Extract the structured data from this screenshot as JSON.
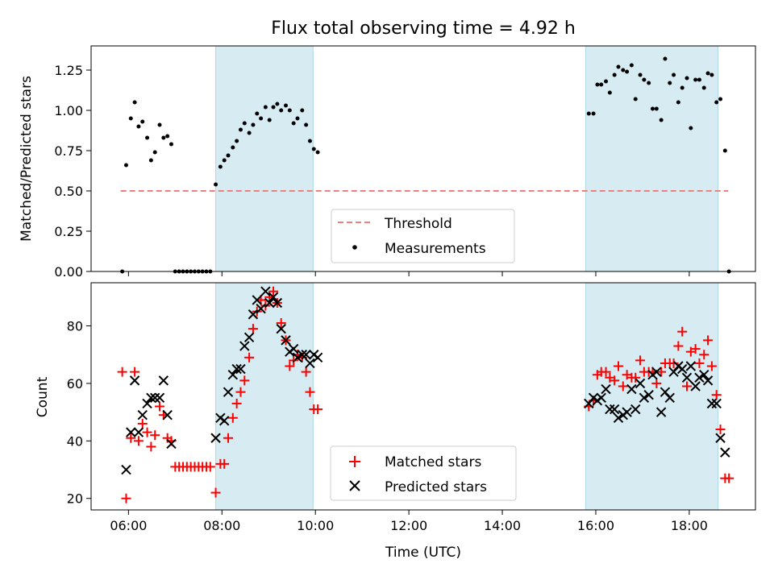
{
  "title": "Flux total observing time = 4.92 h",
  "xlabel": "Time (UTC)",
  "x_tick_labels": [
    "06:00",
    "08:00",
    "10:00",
    "12:00",
    "14:00",
    "16:00",
    "18:00"
  ],
  "chart_data": [
    {
      "type": "scatter",
      "ylabel": "Matched/Predicted stars",
      "ylim": [
        0,
        1.4
      ],
      "yticks": [
        "0.00",
        "0.25",
        "0.50",
        "0.75",
        "1.00",
        "1.25"
      ],
      "shaded_intervals": [
        [
          "07:52",
          "09:57"
        ],
        [
          "15:47",
          "18:37"
        ]
      ],
      "threshold": {
        "name": "Threshold",
        "value": 0.5,
        "x_range": [
          "05:50",
          "18:50"
        ],
        "color": "#f08080",
        "style": "dashed"
      },
      "legend": {
        "placement": "lower-center",
        "entries": [
          "Threshold",
          "Measurements"
        ]
      },
      "series": [
        {
          "name": "Measurements",
          "marker": "dot",
          "color": "#000000",
          "points": [
            [
              "05:52",
              0
            ],
            [
              "05:57",
              0.66
            ],
            [
              "06:03",
              0.95
            ],
            [
              "06:08",
              1.05
            ],
            [
              "06:13",
              0.9
            ],
            [
              "06:18",
              0.93
            ],
            [
              "06:24",
              0.83
            ],
            [
              "06:29",
              0.69
            ],
            [
              "06:34",
              0.74
            ],
            [
              "06:40",
              0.91
            ],
            [
              "06:45",
              0.83
            ],
            [
              "06:50",
              0.84
            ],
            [
              "06:55",
              0.79
            ],
            [
              "07:00",
              0
            ],
            [
              "07:05",
              0
            ],
            [
              "07:10",
              0
            ],
            [
              "07:15",
              0
            ],
            [
              "07:20",
              0
            ],
            [
              "07:25",
              0
            ],
            [
              "07:30",
              0
            ],
            [
              "07:35",
              0
            ],
            [
              "07:40",
              0
            ],
            [
              "07:45",
              0
            ],
            [
              "07:52",
              0.54
            ],
            [
              "07:58",
              0.65
            ],
            [
              "08:03",
              0.69
            ],
            [
              "08:08",
              0.72
            ],
            [
              "08:14",
              0.77
            ],
            [
              "08:19",
              0.81
            ],
            [
              "08:24",
              0.88
            ],
            [
              "08:29",
              0.92
            ],
            [
              "08:35",
              0.86
            ],
            [
              "08:40",
              0.91
            ],
            [
              "08:45",
              0.98
            ],
            [
              "08:50",
              0.95
            ],
            [
              "08:56",
              1.02
            ],
            [
              "09:01",
              0.94
            ],
            [
              "09:06",
              1.02
            ],
            [
              "09:11",
              1.04
            ],
            [
              "09:16",
              1.0
            ],
            [
              "09:22",
              1.03
            ],
            [
              "09:27",
              1.0
            ],
            [
              "09:32",
              0.92
            ],
            [
              "09:37",
              0.95
            ],
            [
              "09:43",
              1.0
            ],
            [
              "09:48",
              0.91
            ],
            [
              "09:53",
              0.81
            ],
            [
              "09:58",
              0.76
            ],
            [
              "10:03",
              0.74
            ],
            [
              "15:51",
              0.98
            ],
            [
              "15:57",
              0.98
            ],
            [
              "16:02",
              1.16
            ],
            [
              "16:07",
              1.16
            ],
            [
              "16:13",
              1.18
            ],
            [
              "16:18",
              1.11
            ],
            [
              "16:24",
              1.22
            ],
            [
              "16:29",
              1.27
            ],
            [
              "16:35",
              1.25
            ],
            [
              "16:40",
              1.24
            ],
            [
              "16:46",
              1.28
            ],
            [
              "16:51",
              1.07
            ],
            [
              "16:57",
              1.22
            ],
            [
              "17:02",
              1.19
            ],
            [
              "17:08",
              1.17
            ],
            [
              "17:13",
              1.01
            ],
            [
              "17:18",
              1.01
            ],
            [
              "17:24",
              0.94
            ],
            [
              "17:29",
              1.32
            ],
            [
              "17:35",
              1.17
            ],
            [
              "17:40",
              1.22
            ],
            [
              "17:46",
              1.05
            ],
            [
              "17:51",
              1.14
            ],
            [
              "17:57",
              1.2
            ],
            [
              "18:02",
              0.89
            ],
            [
              "18:08",
              1.19
            ],
            [
              "18:13",
              1.19
            ],
            [
              "18:19",
              1.14
            ],
            [
              "18:24",
              1.23
            ],
            [
              "18:29",
              1.22
            ],
            [
              "18:35",
              1.05
            ],
            [
              "18:40",
              1.07
            ],
            [
              "18:46",
              0.75
            ],
            [
              "18:51",
              0
            ]
          ]
        }
      ]
    },
    {
      "type": "scatter",
      "ylabel": "Count",
      "ylim": [
        16,
        95
      ],
      "yticks": [
        "20",
        "40",
        "60",
        "80"
      ],
      "shaded_intervals": [
        [
          "07:52",
          "09:57"
        ],
        [
          "15:47",
          "18:37"
        ]
      ],
      "legend": {
        "placement": "lower-center",
        "entries": [
          "Matched stars",
          "Predicted stars"
        ]
      },
      "series": [
        {
          "name": "Matched stars",
          "marker": "+",
          "color": "#ff0000",
          "points": [
            [
              "05:52",
              64
            ],
            [
              "05:57",
              20
            ],
            [
              "06:03",
              41
            ],
            [
              "06:08",
              64
            ],
            [
              "06:13",
              40
            ],
            [
              "06:18",
              46
            ],
            [
              "06:24",
              43
            ],
            [
              "06:29",
              38
            ],
            [
              "06:34",
              42
            ],
            [
              "06:40",
              52
            ],
            [
              "06:45",
              49
            ],
            [
              "06:50",
              41
            ],
            [
              "06:55",
              40
            ],
            [
              "07:00",
              31
            ],
            [
              "07:05",
              31
            ],
            [
              "07:10",
              31
            ],
            [
              "07:15",
              31
            ],
            [
              "07:20",
              31
            ],
            [
              "07:25",
              31
            ],
            [
              "07:30",
              31
            ],
            [
              "07:35",
              31
            ],
            [
              "07:40",
              31
            ],
            [
              "07:45",
              31
            ],
            [
              "07:52",
              22
            ],
            [
              "07:58",
              32
            ],
            [
              "08:03",
              32
            ],
            [
              "08:08",
              41
            ],
            [
              "08:14",
              48
            ],
            [
              "08:19",
              53
            ],
            [
              "08:24",
              57
            ],
            [
              "08:29",
              61
            ],
            [
              "08:35",
              69
            ],
            [
              "08:40",
              79
            ],
            [
              "08:45",
              85
            ],
            [
              "08:50",
              89
            ],
            [
              "08:56",
              87
            ],
            [
              "09:01",
              90
            ],
            [
              "09:06",
              92
            ],
            [
              "09:11",
              88
            ],
            [
              "09:16",
              81
            ],
            [
              "09:22",
              75
            ],
            [
              "09:27",
              66
            ],
            [
              "09:32",
              68
            ],
            [
              "09:37",
              70
            ],
            [
              "09:43",
              69
            ],
            [
              "09:48",
              64
            ],
            [
              "09:53",
              57
            ],
            [
              "09:58",
              51
            ],
            [
              "10:03",
              51
            ],
            [
              "15:51",
              52
            ],
            [
              "15:57",
              54
            ],
            [
              "16:02",
              63
            ],
            [
              "16:07",
              64
            ],
            [
              "16:13",
              64
            ],
            [
              "16:18",
              62
            ],
            [
              "16:24",
              61
            ],
            [
              "16:29",
              66
            ],
            [
              "16:35",
              59
            ],
            [
              "16:40",
              63
            ],
            [
              "16:46",
              62
            ],
            [
              "16:51",
              62
            ],
            [
              "16:57",
              68
            ],
            [
              "17:02",
              64
            ],
            [
              "17:08",
              64
            ],
            [
              "17:13",
              64
            ],
            [
              "17:18",
              60
            ],
            [
              "17:24",
              64
            ],
            [
              "17:29",
              67
            ],
            [
              "17:35",
              67
            ],
            [
              "17:40",
              67
            ],
            [
              "17:46",
              73
            ],
            [
              "17:51",
              78
            ],
            [
              "17:57",
              59
            ],
            [
              "18:02",
              71
            ],
            [
              "18:08",
              72
            ],
            [
              "18:13",
              67
            ],
            [
              "18:19",
              70
            ],
            [
              "18:24",
              75
            ],
            [
              "18:29",
              66
            ],
            [
              "18:35",
              56
            ],
            [
              "18:40",
              44
            ],
            [
              "18:46",
              27
            ],
            [
              "18:51",
              27
            ]
          ]
        },
        {
          "name": "Predicted stars",
          "marker": "x",
          "color": "#000000",
          "points": [
            [
              "05:57",
              30
            ],
            [
              "06:03",
              43
            ],
            [
              "06:08",
              61
            ],
            [
              "06:13",
              43
            ],
            [
              "06:18",
              49
            ],
            [
              "06:24",
              53
            ],
            [
              "06:29",
              55
            ],
            [
              "06:34",
              55
            ],
            [
              "06:40",
              55
            ],
            [
              "06:45",
              61
            ],
            [
              "06:50",
              49
            ],
            [
              "06:55",
              39
            ],
            [
              "07:52",
              41
            ],
            [
              "07:58",
              48
            ],
            [
              "08:03",
              47
            ],
            [
              "08:08",
              57
            ],
            [
              "08:14",
              63
            ],
            [
              "08:19",
              65
            ],
            [
              "08:24",
              65
            ],
            [
              "08:29",
              73
            ],
            [
              "08:35",
              76
            ],
            [
              "08:40",
              84
            ],
            [
              "08:45",
              89
            ],
            [
              "08:50",
              86
            ],
            [
              "08:56",
              92
            ],
            [
              "09:01",
              88
            ],
            [
              "09:06",
              90
            ],
            [
              "09:11",
              88
            ],
            [
              "09:16",
              79
            ],
            [
              "09:22",
              75
            ],
            [
              "09:27",
              71
            ],
            [
              "09:32",
              72
            ],
            [
              "09:37",
              69
            ],
            [
              "09:43",
              70
            ],
            [
              "09:48",
              70
            ],
            [
              "09:53",
              67
            ],
            [
              "09:58",
              70
            ],
            [
              "10:03",
              69
            ],
            [
              "15:51",
              53
            ],
            [
              "15:57",
              55
            ],
            [
              "16:02",
              54
            ],
            [
              "16:07",
              55
            ],
            [
              "16:13",
              58
            ],
            [
              "16:18",
              51
            ],
            [
              "16:24",
              51
            ],
            [
              "16:29",
              48
            ],
            [
              "16:35",
              49
            ],
            [
              "16:40",
              50
            ],
            [
              "16:46",
              58
            ],
            [
              "16:51",
              51
            ],
            [
              "16:57",
              60
            ],
            [
              "17:02",
              55
            ],
            [
              "17:08",
              56
            ],
            [
              "17:13",
              63
            ],
            [
              "17:18",
              64
            ],
            [
              "17:24",
              50
            ],
            [
              "17:29",
              57
            ],
            [
              "17:35",
              55
            ],
            [
              "17:40",
              64
            ],
            [
              "17:46",
              66
            ],
            [
              "17:51",
              65
            ],
            [
              "17:57",
              62
            ],
            [
              "18:02",
              66
            ],
            [
              "18:08",
              59
            ],
            [
              "18:13",
              62
            ],
            [
              "18:19",
              63
            ],
            [
              "18:24",
              61
            ],
            [
              "18:29",
              53
            ],
            [
              "18:35",
              53
            ],
            [
              "18:40",
              41
            ],
            [
              "18:46",
              36
            ]
          ]
        }
      ]
    }
  ]
}
